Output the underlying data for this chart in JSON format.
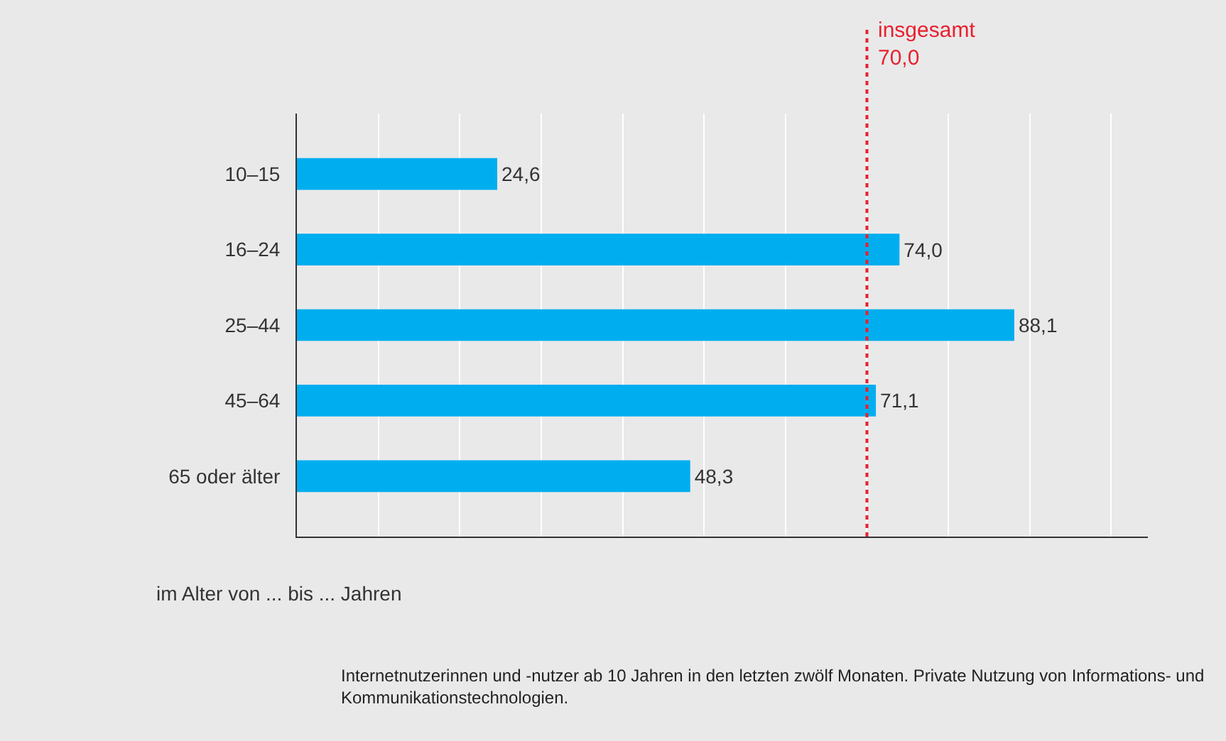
{
  "chart_data": {
    "type": "bar",
    "orientation": "horizontal",
    "categories": [
      "10–15",
      "16–24",
      "25–44",
      "45–64",
      "65 oder älter"
    ],
    "values": [
      24.6,
      74.0,
      88.1,
      71.1,
      48.3
    ],
    "value_labels": [
      "24,6",
      "74,0",
      "88,1",
      "71,1",
      "48,3"
    ],
    "color": "#00aeef",
    "xlim": [
      0,
      104.5
    ],
    "xticks": [
      {
        "value": 0,
        "label": null
      },
      {
        "value": 10,
        "label": null
      },
      {
        "value": 20,
        "label": null
      },
      {
        "value": 30,
        "label": null
      },
      {
        "value": 40,
        "label": null
      },
      {
        "value": 50,
        "label": null
      },
      {
        "value": 60,
        "label": null
      },
      {
        "value": 70,
        "label": null
      },
      {
        "value": 80,
        "label": null
      },
      {
        "value": 90,
        "label": null
      },
      {
        "value": 100,
        "label": null
      }
    ],
    "grid": "x",
    "tick_labels": "y",
    "ylabel": "im Alter von ... bis ... Jahren",
    "ref_lines": [
      {
        "axis": "x",
        "value": 70.0,
        "label": "insgesamt\n70,0",
        "color": "#e8212e",
        "line_style": "dotted"
      }
    ],
    "annotations": [
      "Internetnutzerinnen und -nutzer ab 10 Jahren in den letzten zwölf Monaten. Private Nutzung von Informations- und\nKommunikationstechnologien."
    ],
    "legend": false
  }
}
